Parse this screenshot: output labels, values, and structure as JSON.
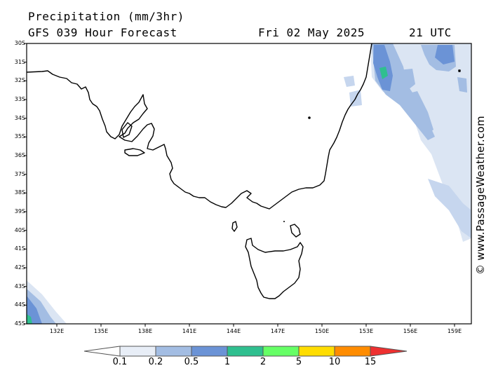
{
  "header": {
    "title": "Precipitation (mm/3hr)",
    "model": "GFS 039 Hour Forecast",
    "date": "Fri 02 May 2025",
    "time": "21 UTC"
  },
  "watermark": "© www.PassageWeather.com",
  "axes": {
    "lat_labels": [
      "30S",
      "31S",
      "32S",
      "33S",
      "34S",
      "35S",
      "36S",
      "37S",
      "38S",
      "39S",
      "40S",
      "41S",
      "42S",
      "43S",
      "44S",
      "45S"
    ],
    "lon_labels": [
      "132E",
      "135E",
      "138E",
      "141E",
      "144E",
      "147E",
      "150E",
      "153E",
      "156E",
      "159E"
    ]
  },
  "colorbar": {
    "labels": [
      "0.1",
      "0.2",
      "0.5",
      "1",
      "2",
      "5",
      "10",
      "15"
    ],
    "colors": [
      "#e8eef7",
      "#c6d6ee",
      "#a3bde3",
      "#6b93d6",
      "#2fbf8f",
      "#66ff66",
      "#ffdd00",
      "#ff8c00",
      "#ee3030"
    ]
  },
  "colors": {
    "coast": "#000000",
    "precip_light": "#dbe5f3",
    "precip_mid": "#a3bde3",
    "precip_heavy": "#6b93d6",
    "precip_green": "#2fbf8f"
  }
}
